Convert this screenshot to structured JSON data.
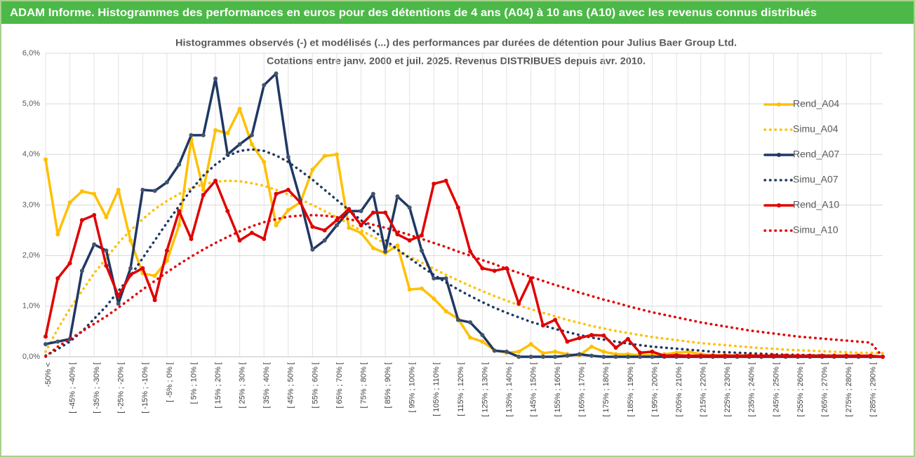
{
  "header": {
    "title": "ADAM Informe. Histogrammes des performances en euros pour des détentions de 4 ans (A04) à 10 ans (A10) avec les revenus connus distribués"
  },
  "chart_data": {
    "type": "line",
    "title": "Histogrammes observés (-) et modélisés (...) des performances par durées de détention pour Julius Baer Group Ltd.",
    "subtitle": "Cotations entre janv. 2000 et juil. 2025. Revenus DISTRIBUES depuis avr. 2010.",
    "categories": [
      "-50% <",
      null,
      "[ -45% ; -40% [",
      null,
      "[ -35% ; -30% [",
      null,
      "[ -25% ; -20% [",
      null,
      "[ -15% ; -10% [",
      null,
      "[ -5% ; 0% [",
      null,
      "[ 5% ; 10% [",
      null,
      "[ 15% ; 20% [",
      null,
      "[ 25% ; 30% [",
      null,
      "[ 35% ; 40% [",
      null,
      "[ 45% ; 50% [",
      null,
      "[ 55% ; 60% [",
      null,
      "[ 65% ; 70% [",
      null,
      "[ 75% ; 80% [",
      null,
      "[ 85% ; 90% [",
      null,
      "[ 95% ; 100% [",
      null,
      "[ 105% ; 110% [",
      null,
      "[ 115% ; 120% [",
      null,
      "[ 125% ; 130% [",
      null,
      "[ 135% ; 140% [",
      null,
      "[ 145% ; 150% [",
      null,
      "[ 155% ; 160% [",
      null,
      "[ 165% ; 170% [",
      null,
      "[ 175% ; 180% [",
      null,
      "[ 185% ; 190% [",
      null,
      "[ 195% ; 200% [",
      null,
      "[ 205% ; 210% [",
      null,
      "[ 215% ; 220% [",
      null,
      "[ 225% ; 230% [",
      null,
      "[ 235% ; 240% [",
      null,
      "[ 245% ; 250% [",
      null,
      "[ 255% ; 260% [",
      null,
      "[ 265% ; 270% [",
      null,
      "[ 275% ; 280% [",
      null,
      "[ 285% ; 290% [",
      null
    ],
    "series": [
      {
        "name": "Rend_A04",
        "color": "#ffc000",
        "style": "solid",
        "values": [
          3.9,
          2.42,
          3.05,
          3.27,
          3.22,
          2.76,
          3.3,
          2.3,
          1.65,
          1.6,
          1.9,
          2.6,
          4.3,
          3.3,
          4.48,
          4.42,
          4.9,
          4.2,
          3.85,
          2.6,
          2.9,
          3.05,
          3.7,
          3.97,
          4.0,
          2.55,
          2.45,
          2.15,
          2.05,
          2.2,
          1.33,
          1.35,
          1.15,
          0.9,
          0.75,
          0.38,
          0.3,
          0.13,
          0.08,
          0.1,
          0.25,
          0.07,
          0.1,
          0.05,
          0.03,
          0.2,
          0.1,
          0.05,
          0.05,
          0.03,
          0.03,
          0.05,
          0.08,
          0.1,
          0.05,
          0.03,
          0.03,
          0.02,
          0.03,
          0.02,
          0.02,
          0.02,
          0.02,
          0.02,
          0.02,
          0.02,
          0.02,
          0.02,
          0.02,
          0.0
        ]
      },
      {
        "name": "Simu_A04",
        "color": "#ffc000",
        "style": "dotted",
        "values": [
          0.1,
          0.55,
          0.95,
          1.3,
          1.65,
          1.95,
          2.25,
          2.5,
          2.72,
          2.92,
          3.08,
          3.22,
          3.33,
          3.41,
          3.46,
          3.48,
          3.47,
          3.43,
          3.38,
          3.3,
          3.21,
          3.11,
          3.0,
          2.88,
          2.76,
          2.63,
          2.5,
          2.37,
          2.24,
          2.11,
          1.98,
          1.86,
          1.74,
          1.62,
          1.51,
          1.4,
          1.3,
          1.2,
          1.11,
          1.02,
          0.94,
          0.87,
          0.8,
          0.73,
          0.67,
          0.61,
          0.56,
          0.51,
          0.47,
          0.43,
          0.39,
          0.36,
          0.33,
          0.3,
          0.27,
          0.25,
          0.23,
          0.21,
          0.19,
          0.17,
          0.16,
          0.14,
          0.13,
          0.12,
          0.11,
          0.1,
          0.09,
          0.08,
          0.08,
          0.07
        ]
      },
      {
        "name": "Rend_A07",
        "color": "#1f3864",
        "style": "solid",
        "values": [
          0.25,
          0.3,
          0.35,
          1.7,
          2.22,
          2.1,
          1.05,
          1.75,
          3.3,
          3.28,
          3.45,
          3.8,
          4.38,
          4.38,
          5.5,
          4.0,
          4.2,
          4.38,
          5.37,
          5.6,
          3.95,
          3.1,
          2.12,
          2.3,
          2.6,
          2.88,
          2.88,
          3.22,
          2.08,
          3.17,
          2.95,
          2.1,
          1.55,
          1.55,
          0.73,
          0.68,
          0.43,
          0.12,
          0.1,
          0.0,
          0.0,
          0.0,
          0.0,
          0.02,
          0.05,
          0.02,
          0.0,
          0.0,
          0.0,
          0.0,
          0.0,
          0.0,
          0.0,
          0.0,
          0.0,
          0.0,
          0.0,
          0.0,
          0.0,
          0.0,
          0.0,
          0.0,
          0.0,
          0.0,
          0.0,
          0.0,
          0.0,
          0.0,
          0.0,
          0.0
        ]
      },
      {
        "name": "Simu_A07",
        "color": "#1f3864",
        "style": "dotted",
        "values": [
          0.02,
          0.15,
          0.3,
          0.5,
          0.75,
          1.0,
          1.3,
          1.6,
          1.95,
          2.3,
          2.65,
          2.98,
          3.3,
          3.58,
          3.8,
          3.97,
          4.07,
          4.1,
          4.07,
          3.98,
          3.85,
          3.68,
          3.5,
          3.3,
          3.1,
          2.9,
          2.7,
          2.5,
          2.31,
          2.12,
          1.95,
          1.78,
          1.62,
          1.47,
          1.33,
          1.2,
          1.08,
          0.97,
          0.87,
          0.78,
          0.69,
          0.62,
          0.55,
          0.49,
          0.43,
          0.38,
          0.34,
          0.3,
          0.26,
          0.23,
          0.2,
          0.18,
          0.16,
          0.14,
          0.12,
          0.1,
          0.09,
          0.08,
          0.07,
          0.06,
          0.05,
          0.04,
          0.04,
          0.03,
          0.03,
          0.02,
          0.02,
          0.02,
          0.01,
          0.01
        ]
      },
      {
        "name": "Rend_A10",
        "color": "#e00000",
        "style": "solid",
        "values": [
          0.4,
          1.55,
          1.85,
          2.7,
          2.8,
          1.8,
          1.2,
          1.62,
          1.75,
          1.12,
          2.1,
          2.88,
          2.33,
          3.2,
          3.48,
          2.88,
          2.3,
          2.45,
          2.33,
          3.22,
          3.3,
          3.05,
          2.57,
          2.5,
          2.7,
          2.92,
          2.6,
          2.85,
          2.85,
          2.42,
          2.3,
          2.4,
          3.42,
          3.48,
          2.95,
          2.08,
          1.75,
          1.7,
          1.75,
          1.05,
          1.55,
          0.62,
          0.73,
          0.3,
          0.37,
          0.43,
          0.42,
          0.18,
          0.35,
          0.08,
          0.1,
          0.02,
          0.03,
          0.02,
          0.02,
          0.02,
          0.02,
          0.02,
          0.02,
          0.02,
          0.02,
          0.02,
          0.02,
          0.02,
          0.02,
          0.02,
          0.02,
          0.02,
          0.02,
          0.0
        ]
      },
      {
        "name": "Simu_A10",
        "color": "#e00000",
        "style": "dotted",
        "values": [
          0.0,
          0.2,
          0.35,
          0.5,
          0.65,
          0.8,
          0.97,
          1.15,
          1.33,
          1.5,
          1.67,
          1.83,
          1.98,
          2.12,
          2.25,
          2.37,
          2.48,
          2.58,
          2.66,
          2.72,
          2.77,
          2.79,
          2.8,
          2.79,
          2.76,
          2.72,
          2.67,
          2.61,
          2.55,
          2.48,
          2.41,
          2.33,
          2.25,
          2.17,
          2.08,
          2.0,
          1.91,
          1.83,
          1.74,
          1.66,
          1.58,
          1.5,
          1.42,
          1.35,
          1.27,
          1.2,
          1.13,
          1.07,
          1.0,
          0.94,
          0.88,
          0.83,
          0.78,
          0.73,
          0.68,
          0.64,
          0.6,
          0.56,
          0.52,
          0.49,
          0.46,
          0.43,
          0.4,
          0.38,
          0.36,
          0.34,
          0.32,
          0.3,
          0.28,
          0.0
        ]
      }
    ],
    "ylim": [
      0,
      6
    ],
    "yticks": [
      {
        "value": 0,
        "label": "0,0%"
      },
      {
        "value": 1,
        "label": "1,0%"
      },
      {
        "value": 2,
        "label": "2,0%"
      },
      {
        "value": 3,
        "label": "3,0%"
      },
      {
        "value": 4,
        "label": "4,0%"
      },
      {
        "value": 5,
        "label": "5,0%"
      },
      {
        "value": 6,
        "label": "6,0%"
      }
    ],
    "grid": true,
    "legend": "right"
  }
}
